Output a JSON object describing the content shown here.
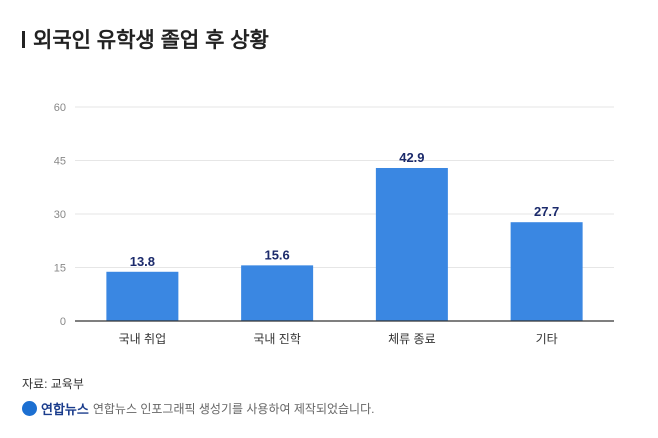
{
  "title": "외국인 유학생 졸업 후 상황",
  "source": "자료: 교육부",
  "credit": {
    "brand": "연합뉴스",
    "text": "연합뉴스 인포그래픽 생성기를 사용하여 제작되었습니다."
  },
  "chart_data": {
    "type": "bar",
    "categories": [
      "국내 취업",
      "국내 진학",
      "체류 종료",
      "기타"
    ],
    "values": [
      13.8,
      15.6,
      42.9,
      27.7
    ],
    "ylim": [
      0,
      60
    ],
    "yticks": [
      0,
      15,
      30,
      45,
      60
    ],
    "grid": true,
    "bar_color": "#3a87e2",
    "label_color": "#1b2a6b"
  }
}
